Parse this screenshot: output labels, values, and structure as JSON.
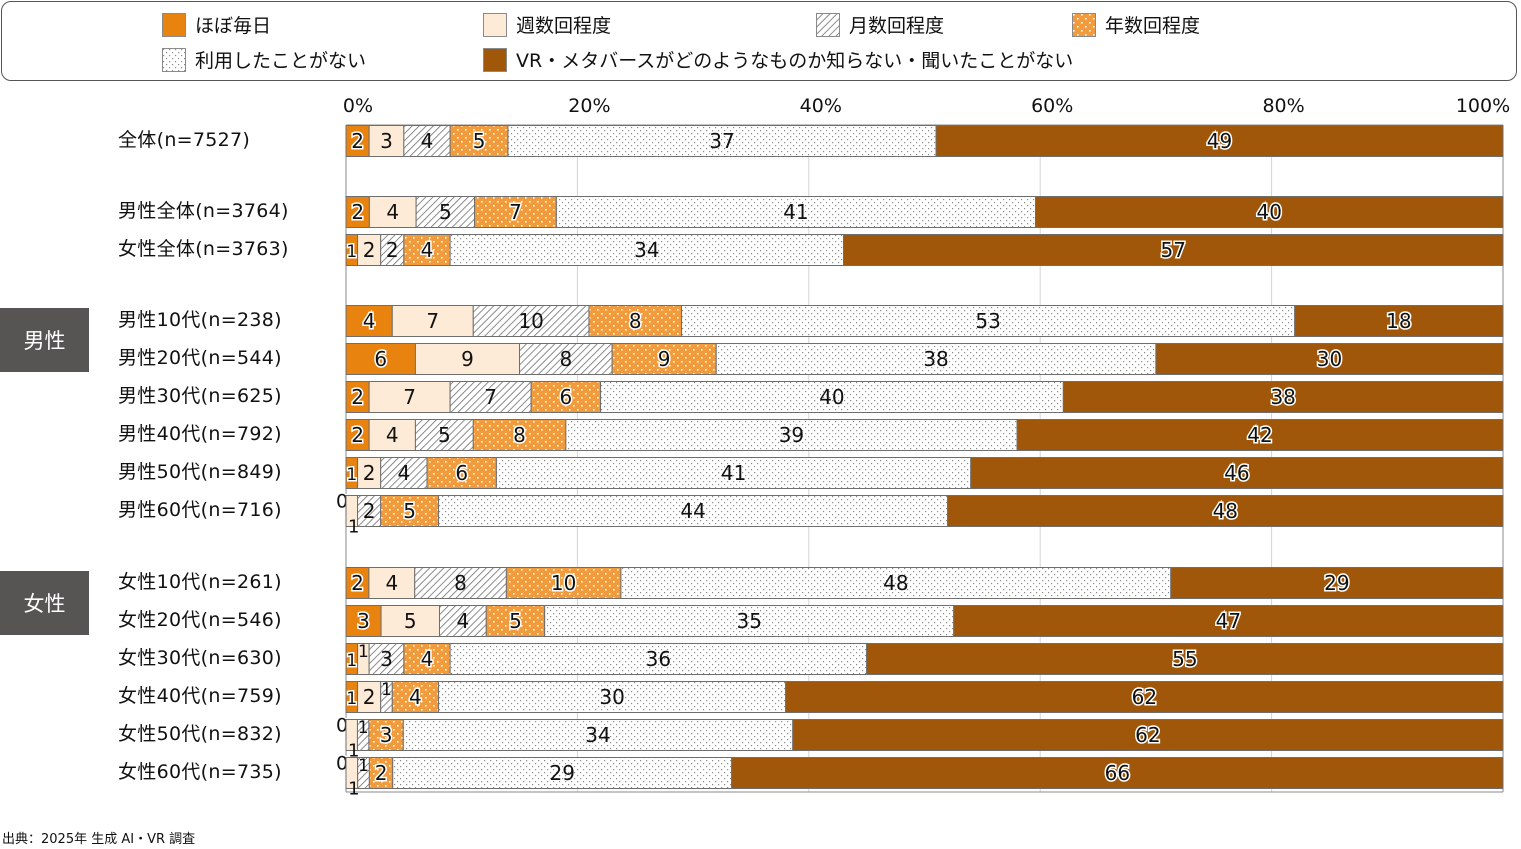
{
  "chart_data": {
    "type": "bar",
    "orientation": "horizontal-stacked-100",
    "title": "",
    "xlabel": "",
    "ylabel": "",
    "xlim": [
      0,
      100
    ],
    "x_ticks": [
      "0%",
      "20%",
      "40%",
      "60%",
      "80%",
      "100%"
    ],
    "grid": true,
    "legend_position": "top",
    "series": [
      {
        "name": "ほぼ毎日",
        "color": "#e8830f",
        "pattern": "solid"
      },
      {
        "name": "週数回程度",
        "color": "#fdebd7",
        "pattern": "solid"
      },
      {
        "name": "月数回程度",
        "color": "#ffffff",
        "pattern": "diagonal"
      },
      {
        "name": "年数回程度",
        "color": "#f29b3c",
        "pattern": "white-dots"
      },
      {
        "name": "利用したことがない",
        "color": "#ffffff",
        "pattern": "gray-dots"
      },
      {
        "name": "VR・メタバースがどのようなものか知らない・聞いたことがない",
        "color": "#a0570a",
        "pattern": "solid"
      }
    ],
    "rows": [
      {
        "label": "全体(n=7527)",
        "values": [
          2,
          3,
          4,
          5,
          37,
          49
        ]
      },
      {
        "label": "男性全体(n=3764)",
        "values": [
          2,
          4,
          5,
          7,
          41,
          40
        ]
      },
      {
        "label": "女性全体(n=3763)",
        "values": [
          1,
          2,
          2,
          4,
          34,
          57
        ]
      },
      {
        "label": "男性10代(n=238)",
        "values": [
          4,
          7,
          10,
          8,
          53,
          18
        ]
      },
      {
        "label": "男性20代(n=544)",
        "values": [
          6,
          9,
          8,
          9,
          38,
          30
        ]
      },
      {
        "label": "男性30代(n=625)",
        "values": [
          2,
          7,
          7,
          6,
          40,
          38
        ]
      },
      {
        "label": "男性40代(n=792)",
        "values": [
          2,
          4,
          5,
          8,
          39,
          42
        ]
      },
      {
        "label": "男性50代(n=849)",
        "values": [
          1,
          2,
          4,
          6,
          41,
          46
        ]
      },
      {
        "label": "男性60代(n=716)",
        "values": [
          0,
          1,
          2,
          5,
          44,
          48
        ]
      },
      {
        "label": "女性10代(n=261)",
        "values": [
          2,
          4,
          8,
          10,
          48,
          29
        ]
      },
      {
        "label": "女性20代(n=546)",
        "values": [
          3,
          5,
          4,
          5,
          35,
          47
        ]
      },
      {
        "label": "女性30代(n=630)",
        "values": [
          1,
          1,
          3,
          4,
          36,
          55
        ]
      },
      {
        "label": "女性40代(n=759)",
        "values": [
          1,
          2,
          1,
          4,
          30,
          62
        ]
      },
      {
        "label": "女性50代(n=832)",
        "values": [
          0,
          1,
          1,
          3,
          34,
          62
        ]
      },
      {
        "label": "女性60代(n=735)",
        "values": [
          0,
          1,
          1,
          2,
          29,
          66
        ]
      }
    ]
  },
  "groups": [
    {
      "label": "男性"
    },
    {
      "label": "女性"
    }
  ],
  "source": "出典：2025年 生成 AI・VR 調査"
}
